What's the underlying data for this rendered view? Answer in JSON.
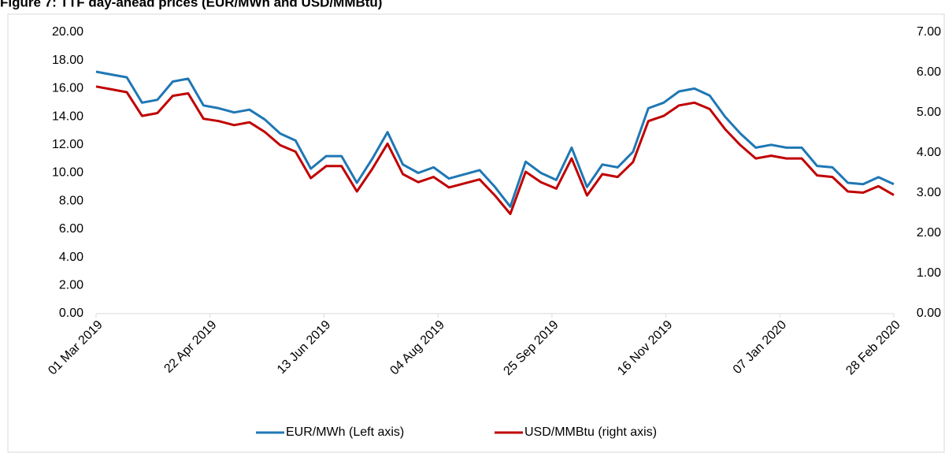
{
  "chart_data": {
    "type": "line",
    "title": "Figure 7: TTF day-ahead prices (EUR/MWh and USD/MMBtu)",
    "x": [
      "2019-03-01",
      "2019-03-08",
      "2019-03-15",
      "2019-03-22",
      "2019-03-29",
      "2019-04-05",
      "2019-04-12",
      "2019-04-19",
      "2019-04-26",
      "2019-05-03",
      "2019-05-10",
      "2019-05-17",
      "2019-05-24",
      "2019-05-31",
      "2019-06-07",
      "2019-06-14",
      "2019-06-21",
      "2019-06-28",
      "2019-07-05",
      "2019-07-12",
      "2019-07-19",
      "2019-07-26",
      "2019-08-02",
      "2019-08-09",
      "2019-08-16",
      "2019-08-23",
      "2019-08-30",
      "2019-09-06",
      "2019-09-13",
      "2019-09-20",
      "2019-09-27",
      "2019-10-04",
      "2019-10-11",
      "2019-10-18",
      "2019-10-25",
      "2019-11-01",
      "2019-11-08",
      "2019-11-15",
      "2019-11-22",
      "2019-11-29",
      "2019-12-06",
      "2019-12-13",
      "2019-12-20",
      "2019-12-27",
      "2020-01-03",
      "2020-01-10",
      "2020-01-17",
      "2020-01-24",
      "2020-01-31",
      "2020-02-07",
      "2020-02-14",
      "2020-02-21",
      "2020-02-28"
    ],
    "series": [
      {
        "name": "EUR/MWh (Left axis)",
        "color": "#1f77b4",
        "axis": "y",
        "values": [
          17.2,
          17.0,
          16.8,
          15.0,
          15.2,
          16.5,
          16.7,
          14.8,
          14.6,
          14.3,
          14.5,
          13.8,
          12.8,
          12.3,
          10.3,
          11.2,
          11.2,
          9.3,
          11.0,
          12.9,
          10.6,
          10.0,
          10.4,
          9.6,
          9.9,
          10.2,
          9.0,
          7.6,
          10.8,
          10.0,
          9.5,
          11.8,
          9.0,
          10.6,
          10.4,
          11.5,
          14.6,
          15.0,
          15.8,
          16.0,
          15.5,
          14.0,
          12.8,
          11.8,
          12.0,
          11.8,
          11.8,
          10.5,
          10.4,
          9.3,
          9.2,
          9.7,
          9.2
        ]
      },
      {
        "name": "USD/MMBtu (right axis)",
        "color": "#c00000",
        "axis": "y2",
        "values": [
          5.65,
          5.58,
          5.51,
          4.92,
          4.99,
          5.42,
          5.48,
          4.85,
          4.79,
          4.69,
          4.76,
          4.52,
          4.19,
          4.03,
          3.37,
          3.67,
          3.67,
          3.04,
          3.6,
          4.23,
          3.47,
          3.27,
          3.4,
          3.14,
          3.24,
          3.34,
          2.94,
          2.48,
          3.53,
          3.27,
          3.11,
          3.86,
          2.94,
          3.47,
          3.4,
          3.77,
          4.79,
          4.92,
          5.18,
          5.25,
          5.09,
          4.59,
          4.19,
          3.86,
          3.93,
          3.86,
          3.86,
          3.44,
          3.4,
          3.04,
          3.01,
          3.17,
          2.95
        ]
      }
    ],
    "xlim": [
      "2019-03-01",
      "2020-02-28"
    ],
    "xticks": [
      {
        "value": "2019-03-01",
        "label": "01 Mar 2019"
      },
      {
        "value": "2019-04-22",
        "label": "22 Apr 2019"
      },
      {
        "value": "2019-06-13",
        "label": "13 Jun 2019"
      },
      {
        "value": "2019-08-04",
        "label": "04 Aug 2019"
      },
      {
        "value": "2019-09-25",
        "label": "25 Sep 2019"
      },
      {
        "value": "2019-11-16",
        "label": "16 Nov 2019"
      },
      {
        "value": "2020-01-07",
        "label": "07 Jan 2020"
      },
      {
        "value": "2020-02-28",
        "label": "28 Feb 2020"
      }
    ],
    "ylim": [
      0,
      20
    ],
    "yticks": [
      {
        "value": 0,
        "label": "0.00"
      },
      {
        "value": 2,
        "label": "2.00"
      },
      {
        "value": 4,
        "label": "4.00"
      },
      {
        "value": 6,
        "label": "6.00"
      },
      {
        "value": 8,
        "label": "8.00"
      },
      {
        "value": 10,
        "label": "10.00"
      },
      {
        "value": 12,
        "label": "12.00"
      },
      {
        "value": 14,
        "label": "14.00"
      },
      {
        "value": 16,
        "label": "16.00"
      },
      {
        "value": 18,
        "label": "18.00"
      },
      {
        "value": 20,
        "label": "20.00"
      }
    ],
    "y2lim": [
      0,
      7
    ],
    "y2ticks": [
      {
        "value": 0,
        "label": "0.00"
      },
      {
        "value": 1,
        "label": "1.00"
      },
      {
        "value": 2,
        "label": "2.00"
      },
      {
        "value": 3,
        "label": "3.00"
      },
      {
        "value": 4,
        "label": "4.00"
      },
      {
        "value": 5,
        "label": "5.00"
      },
      {
        "value": 6,
        "label": "6.00"
      },
      {
        "value": 7,
        "label": "7.00"
      }
    ],
    "legend": "bottom"
  }
}
